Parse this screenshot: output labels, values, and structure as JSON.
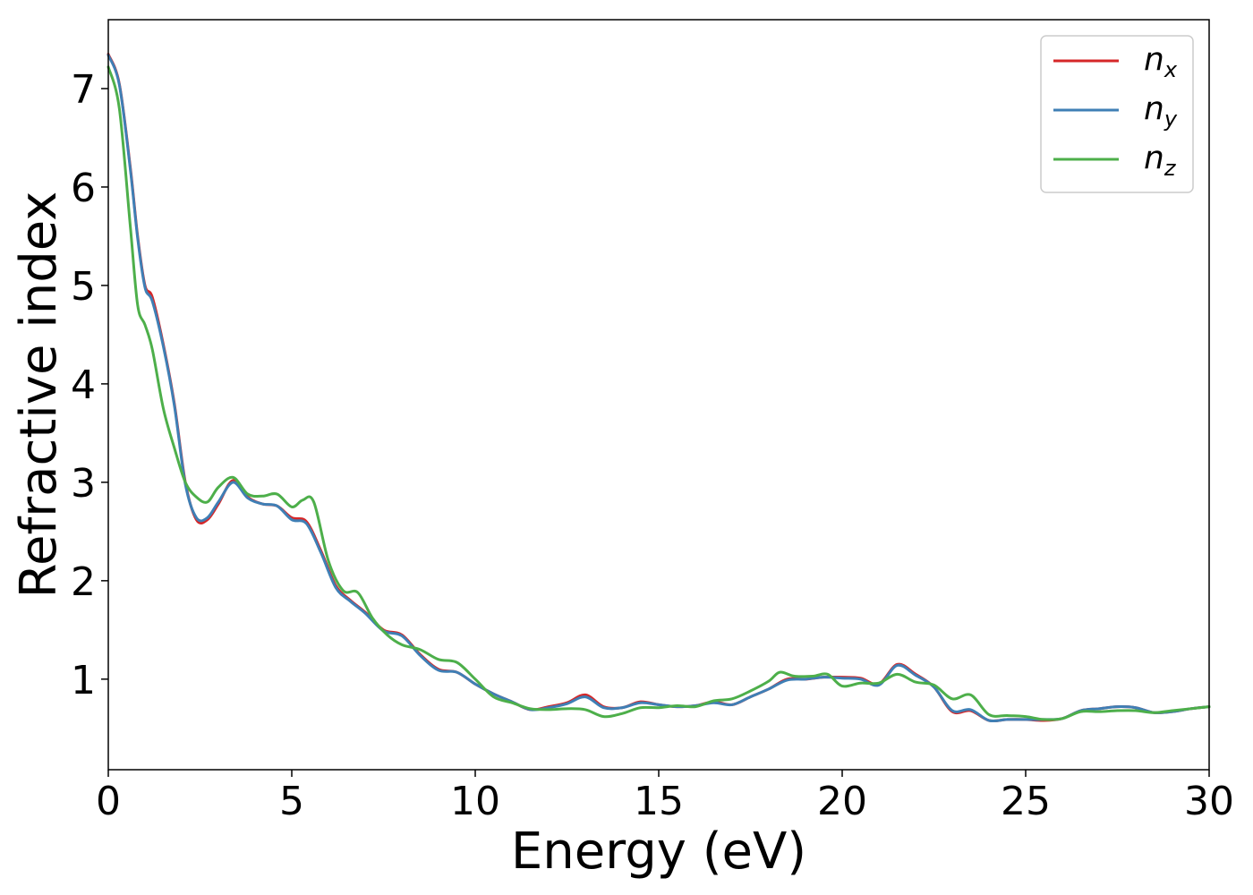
{
  "chart_data": {
    "type": "line",
    "title": "",
    "xlabel": "Energy (eV)",
    "ylabel": "Refractive index",
    "xlim": [
      0,
      30
    ],
    "ylim": [
      0.08,
      7.7
    ],
    "xticks": [
      0,
      5,
      10,
      15,
      20,
      25,
      30
    ],
    "yticks": [
      1,
      2,
      3,
      4,
      5,
      6,
      7
    ],
    "grid": false,
    "legend_position": "top-right",
    "series": [
      {
        "name": "n",
        "subscript": "x",
        "color": "#d62728",
        "x": [
          0,
          0.3,
          0.6,
          0.8,
          1.0,
          1.2,
          1.5,
          1.8,
          2.1,
          2.4,
          2.7,
          3.0,
          3.4,
          3.8,
          4.2,
          4.6,
          5.0,
          5.4,
          5.8,
          6.2,
          6.6,
          7.0,
          7.5,
          8.0,
          8.5,
          9.0,
          9.5,
          10.0,
          10.5,
          11.0,
          11.5,
          12.0,
          12.5,
          13.0,
          13.5,
          14.0,
          14.5,
          15.0,
          15.5,
          16.0,
          16.5,
          17.0,
          17.5,
          18.0,
          18.5,
          19.0,
          19.5,
          20.0,
          20.5,
          21.0,
          21.5,
          22.0,
          22.5,
          23.0,
          23.5,
          24.0,
          24.5,
          25.0,
          25.5,
          26.0,
          26.5,
          27.0,
          27.5,
          28.0,
          28.5,
          29.0,
          29.5,
          30.0
        ],
        "y": [
          7.35,
          7.05,
          6.2,
          5.5,
          5.0,
          4.88,
          4.4,
          3.8,
          3.0,
          2.62,
          2.62,
          2.78,
          3.02,
          2.85,
          2.78,
          2.76,
          2.64,
          2.6,
          2.3,
          1.95,
          1.8,
          1.68,
          1.5,
          1.45,
          1.25,
          1.1,
          1.07,
          0.95,
          0.85,
          0.77,
          0.69,
          0.72,
          0.76,
          0.84,
          0.72,
          0.71,
          0.77,
          0.74,
          0.72,
          0.73,
          0.77,
          0.74,
          0.82,
          0.9,
          1.0,
          1.0,
          1.02,
          1.02,
          1.01,
          0.95,
          1.15,
          1.05,
          0.92,
          0.67,
          0.68,
          0.58,
          0.59,
          0.59,
          0.58,
          0.6,
          0.68,
          0.7,
          0.72,
          0.71,
          0.66,
          0.67,
          0.7,
          0.72
        ]
      },
      {
        "name": "n",
        "subscript": "y",
        "color": "#3f7fb5",
        "x": [
          0,
          0.3,
          0.6,
          0.8,
          1.0,
          1.2,
          1.5,
          1.8,
          2.1,
          2.4,
          2.7,
          3.0,
          3.4,
          3.8,
          4.2,
          4.6,
          5.0,
          5.4,
          5.8,
          6.2,
          6.6,
          7.0,
          7.5,
          8.0,
          8.5,
          9.0,
          9.5,
          10.0,
          10.5,
          11.0,
          11.5,
          12.0,
          12.5,
          13.0,
          13.5,
          14.0,
          14.5,
          15.0,
          15.5,
          16.0,
          16.5,
          17.0,
          17.5,
          18.0,
          18.5,
          19.0,
          19.5,
          20.0,
          20.5,
          21.0,
          21.5,
          22.0,
          22.5,
          23.0,
          23.5,
          24.0,
          24.5,
          25.0,
          25.5,
          26.0,
          26.5,
          27.0,
          27.5,
          28.0,
          28.5,
          29.0,
          29.5,
          30.0
        ],
        "y": [
          7.34,
          7.04,
          6.18,
          5.48,
          4.98,
          4.84,
          4.38,
          3.78,
          2.98,
          2.64,
          2.64,
          2.8,
          3.0,
          2.84,
          2.78,
          2.76,
          2.62,
          2.58,
          2.28,
          1.93,
          1.79,
          1.67,
          1.49,
          1.44,
          1.24,
          1.09,
          1.07,
          0.95,
          0.85,
          0.77,
          0.69,
          0.71,
          0.75,
          0.82,
          0.71,
          0.71,
          0.76,
          0.74,
          0.72,
          0.73,
          0.76,
          0.74,
          0.82,
          0.9,
          0.99,
          1.0,
          1.02,
          1.01,
          1.0,
          0.94,
          1.14,
          1.04,
          0.92,
          0.68,
          0.69,
          0.58,
          0.59,
          0.59,
          0.59,
          0.6,
          0.68,
          0.7,
          0.72,
          0.71,
          0.66,
          0.67,
          0.7,
          0.72
        ]
      },
      {
        "name": "n",
        "subscript": "z",
        "color": "#4daf4a",
        "x": [
          0,
          0.3,
          0.6,
          0.8,
          1.0,
          1.2,
          1.5,
          1.8,
          2.1,
          2.4,
          2.7,
          3.0,
          3.4,
          3.8,
          4.2,
          4.6,
          5.0,
          5.3,
          5.6,
          6.0,
          6.4,
          6.8,
          7.2,
          7.6,
          8.0,
          8.5,
          9.0,
          9.5,
          10.0,
          10.5,
          11.0,
          11.5,
          12.0,
          12.5,
          13.0,
          13.5,
          14.0,
          14.5,
          15.0,
          15.5,
          16.0,
          16.5,
          17.0,
          17.5,
          18.0,
          18.3,
          18.7,
          19.2,
          19.6,
          20.0,
          20.5,
          21.0,
          21.5,
          22.0,
          22.5,
          23.0,
          23.5,
          24.0,
          24.5,
          25.0,
          25.5,
          26.0,
          26.5,
          27.0,
          27.5,
          28.0,
          28.5,
          29.0,
          29.5,
          30.0
        ],
        "y": [
          7.22,
          6.8,
          5.6,
          4.8,
          4.6,
          4.35,
          3.75,
          3.35,
          3.0,
          2.85,
          2.8,
          2.95,
          3.05,
          2.88,
          2.86,
          2.88,
          2.75,
          2.82,
          2.8,
          2.2,
          1.9,
          1.88,
          1.62,
          1.45,
          1.35,
          1.3,
          1.2,
          1.17,
          1.0,
          0.82,
          0.76,
          0.7,
          0.69,
          0.7,
          0.69,
          0.62,
          0.65,
          0.71,
          0.71,
          0.73,
          0.72,
          0.78,
          0.8,
          0.88,
          0.98,
          1.07,
          1.03,
          1.03,
          1.05,
          0.93,
          0.96,
          0.96,
          1.05,
          0.97,
          0.94,
          0.8,
          0.84,
          0.64,
          0.63,
          0.62,
          0.59,
          0.6,
          0.67,
          0.67,
          0.68,
          0.68,
          0.66,
          0.68,
          0.7,
          0.72
        ]
      }
    ]
  }
}
